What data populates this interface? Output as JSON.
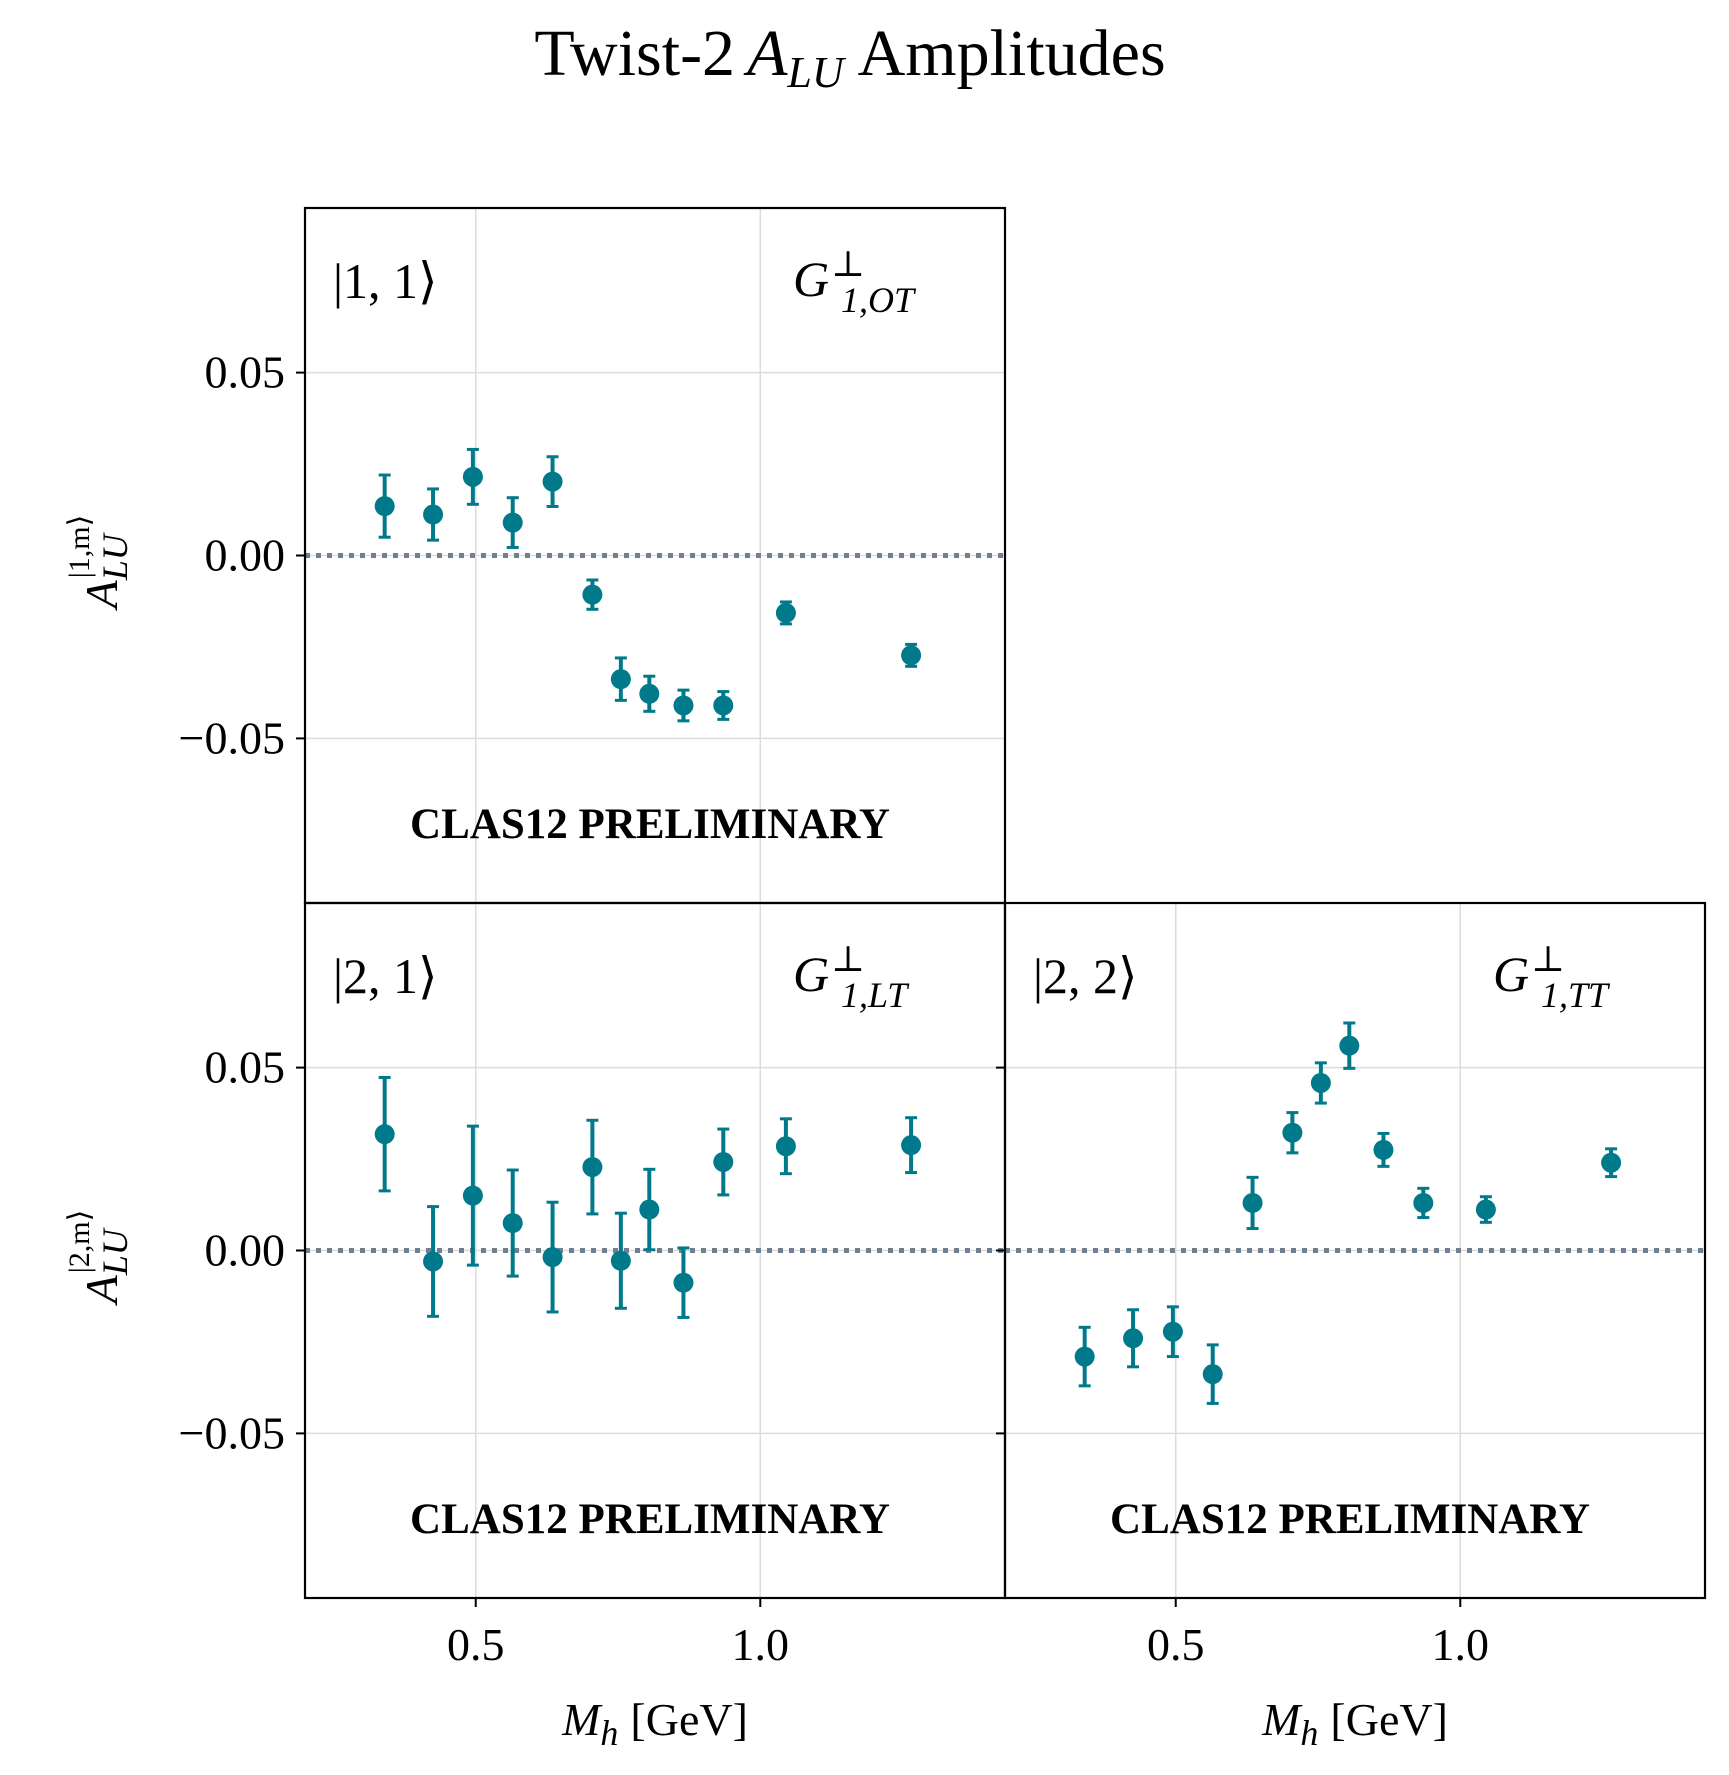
{
  "figure": {
    "title_prefix": "Twist-2",
    "title_A": "A",
    "title_sub": "LU",
    "title_suffix": "Amplitudes"
  },
  "axes_text": {
    "xlabel_M": "M",
    "xlabel_sub": "h",
    "xlabel_unit": "[GeV]",
    "ylabel_A": "A",
    "ylabel_sub": "LU",
    "ylabel_sup_top": "|1,m⟩",
    "ylabel_sup_bottom": "|2,m⟩",
    "xtick_labels": [
      "0.5",
      "1.0"
    ],
    "ytick_labels": [
      "0.05",
      "0.00",
      "−0.05"
    ]
  },
  "colors": {
    "data": "#007a8a",
    "zero_line": "#708090",
    "grid": "#dcdcdc",
    "frame": "#000000"
  },
  "chart_data": [
    {
      "type": "scatter",
      "panel": "top-left",
      "state_label": "|1, 1⟩",
      "function_main": "G",
      "function_sup": "⊥",
      "function_sub": "1,OT",
      "watermark": "CLAS12 PRELIMINARY",
      "xlim": [
        0.2,
        1.43
      ],
      "ylim": [
        -0.095,
        0.095
      ],
      "xticks": [
        0.5,
        1.0
      ],
      "yticks": [
        0.05,
        0.0,
        -0.05
      ],
      "series": [
        {
          "name": "A_LU |1,1>",
          "x": [
            0.34,
            0.425,
            0.495,
            0.565,
            0.635,
            0.705,
            0.755,
            0.805,
            0.865,
            0.935,
            1.045,
            1.265
          ],
          "y": [
            0.0135,
            0.0112,
            0.0215,
            0.009,
            0.0202,
            -0.0107,
            -0.0338,
            -0.0378,
            -0.041,
            -0.041,
            -0.0157,
            -0.0273
          ],
          "err": [
            0.0085,
            0.007,
            0.0075,
            0.0068,
            0.0068,
            0.004,
            0.0058,
            0.0048,
            0.0042,
            0.0038,
            0.003,
            0.003
          ]
        }
      ]
    },
    {
      "type": "scatter",
      "panel": "bottom-left",
      "state_label": "|2, 1⟩",
      "function_main": "G",
      "function_sup": "⊥",
      "function_sub": "1,LT",
      "watermark": "CLAS12 PRELIMINARY",
      "xlim": [
        0.2,
        1.43
      ],
      "ylim": [
        -0.095,
        0.095
      ],
      "xticks": [
        0.5,
        1.0
      ],
      "yticks": [
        0.05,
        0.0,
        -0.05
      ],
      "series": [
        {
          "name": "A_LU |2,1>",
          "x": [
            0.34,
            0.425,
            0.495,
            0.565,
            0.635,
            0.705,
            0.755,
            0.805,
            0.865,
            0.935,
            1.045,
            1.265
          ],
          "y": [
            0.0318,
            -0.003,
            0.015,
            0.0075,
            -0.0018,
            0.0228,
            -0.0028,
            0.0112,
            -0.0088,
            0.0242,
            0.0285,
            0.0288
          ],
          "err": [
            0.0155,
            0.015,
            0.019,
            0.0145,
            0.015,
            0.0128,
            0.013,
            0.011,
            0.0095,
            0.009,
            0.0075,
            0.0075
          ]
        }
      ]
    },
    {
      "type": "scatter",
      "panel": "bottom-right",
      "state_label": "|2, 2⟩",
      "function_main": "G",
      "function_sup": "⊥",
      "function_sub": "1,TT",
      "watermark": "CLAS12 PRELIMINARY",
      "xlim": [
        0.2,
        1.43
      ],
      "ylim": [
        -0.095,
        0.095
      ],
      "xticks": [
        0.5,
        1.0
      ],
      "yticks": [
        0.05,
        0.0,
        -0.05
      ],
      "series": [
        {
          "name": "A_LU |2,2>",
          "x": [
            0.34,
            0.425,
            0.495,
            0.565,
            0.635,
            0.705,
            0.755,
            0.805,
            0.865,
            0.935,
            1.045,
            1.265
          ],
          "y": [
            -0.029,
            -0.024,
            -0.0222,
            -0.0338,
            0.013,
            0.0322,
            0.0458,
            0.056,
            0.0275,
            0.013,
            0.0112,
            0.024
          ],
          "err": [
            0.008,
            0.0078,
            0.0068,
            0.008,
            0.007,
            0.0055,
            0.0055,
            0.0062,
            0.0045,
            0.004,
            0.0035,
            0.0038
          ]
        }
      ]
    }
  ]
}
